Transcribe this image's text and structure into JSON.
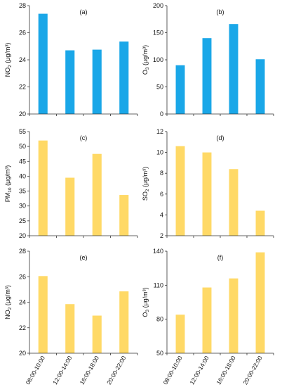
{
  "chart_data": [
    {
      "type": "bar",
      "panel": "(a)",
      "categories": [
        "08:00-10:00",
        "12:00-14:00",
        "16:00-18:00",
        "20:00-22:00"
      ],
      "values": [
        27.4,
        24.7,
        24.75,
        25.35
      ],
      "ylabel": {
        "base": "NO",
        "sub": "2",
        "unit": " (μg/m³)"
      },
      "ylim": [
        20,
        28
      ],
      "yticks": [
        20,
        22,
        24,
        26,
        28
      ],
      "color": "#1aa7e8",
      "show_x_labels": false
    },
    {
      "type": "bar",
      "panel": "(b)",
      "categories": [
        "08:00-10:00",
        "12:00-14:00",
        "16:00-18:00",
        "20:00-22:00"
      ],
      "values": [
        90,
        140,
        166,
        101
      ],
      "ylabel": {
        "base": "O",
        "sub": "3",
        "unit": " (μg/m³)"
      },
      "ylim": [
        0,
        200
      ],
      "yticks": [
        0,
        50,
        100,
        150,
        200
      ],
      "color": "#1aa7e8",
      "show_x_labels": false
    },
    {
      "type": "bar",
      "panel": "(c)",
      "categories": [
        "08:00-10:00",
        "12:00-14:00",
        "16:00-18:00",
        "20:00-22:00"
      ],
      "values": [
        52,
        39.5,
        47.5,
        33.7
      ],
      "ylabel": {
        "base": "PM",
        "sub": "10",
        "unit": " (μg/m³)"
      },
      "ylim": [
        20,
        55
      ],
      "yticks": [
        20,
        25,
        30,
        35,
        40,
        45,
        50,
        55
      ],
      "color": "#ffd966",
      "show_x_labels": false
    },
    {
      "type": "bar",
      "panel": "(d)",
      "categories": [
        "08:00-10:00",
        "12:00-14:00",
        "16:00-18:00",
        "20:00-22:00"
      ],
      "values": [
        10.6,
        10,
        8.4,
        4.4
      ],
      "ylabel": {
        "base": "SO",
        "sub": "2",
        "unit": " (μg/m³)"
      },
      "ylim": [
        2,
        12
      ],
      "yticks": [
        2,
        4,
        6,
        8,
        10,
        12
      ],
      "color": "#ffd966",
      "show_x_labels": false
    },
    {
      "type": "bar",
      "panel": "(e)",
      "categories": [
        "08:00-10:00",
        "12:00-14:00",
        "16:00-18:00",
        "20:00-22:00"
      ],
      "values": [
        26.05,
        23.85,
        22.95,
        24.85
      ],
      "ylabel": {
        "base": "NO",
        "sub": "2",
        "unit": " (μg/m³)"
      },
      "ylim": [
        20,
        28
      ],
      "yticks": [
        20,
        22,
        24,
        26,
        28
      ],
      "color": "#ffd966",
      "show_x_labels": true
    },
    {
      "type": "bar",
      "panel": "(f)",
      "categories": [
        "08:00-10:00",
        "12:00-14:00",
        "16:00-18:00",
        "20:00-22:00"
      ],
      "values": [
        84,
        108,
        116,
        139
      ],
      "ylabel": {
        "base": "O",
        "sub": "3",
        "unit": " (μg/m³)"
      },
      "ylim": [
        50,
        140
      ],
      "yticks": [
        50,
        80,
        110,
        140
      ],
      "color": "#ffd966",
      "show_x_labels": true
    }
  ]
}
